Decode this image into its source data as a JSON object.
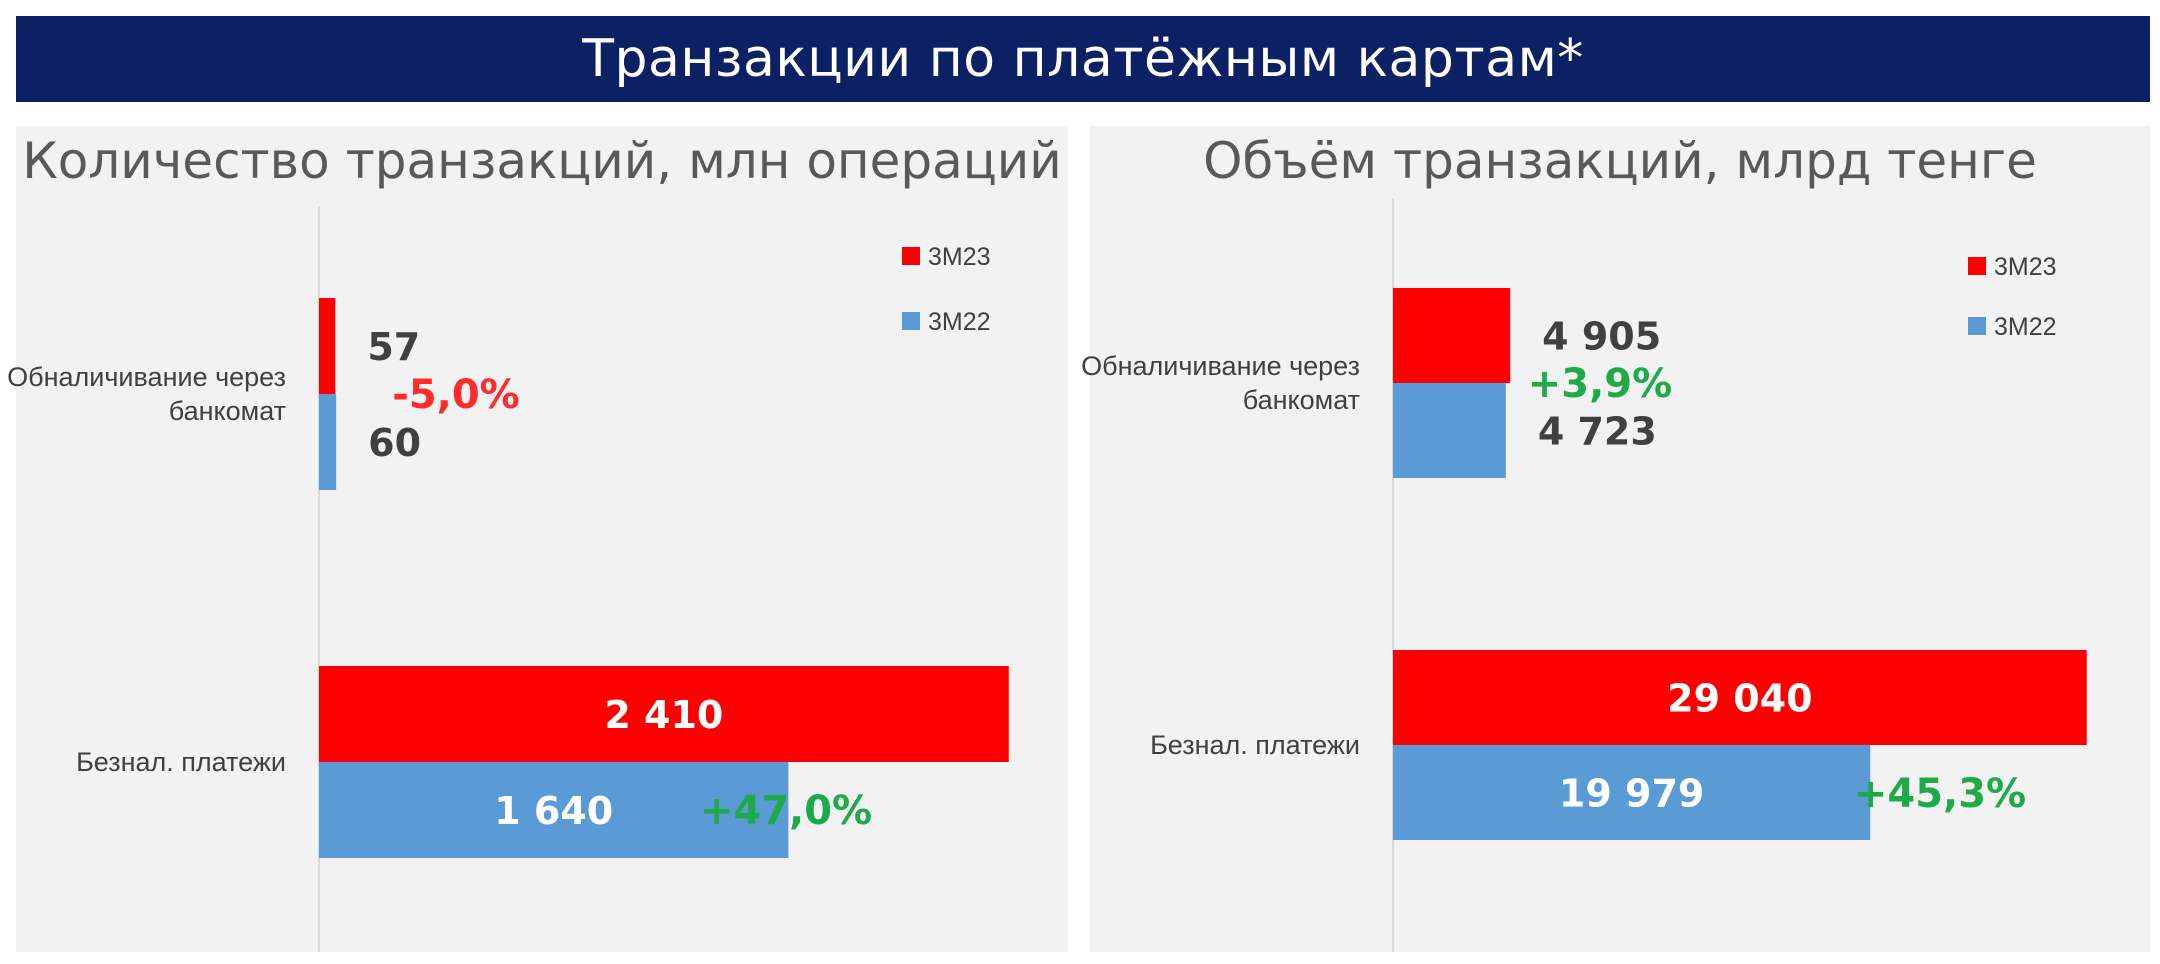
{
  "page": {
    "title": "Транзакции по платёжным картам*"
  },
  "colors": {
    "banner": "#0b2164",
    "series_3m23": "#ff0000",
    "series_3m22": "#5b9bd5",
    "negative": "#ff2a2a",
    "positive": "#1faa4a"
  },
  "chart_data": [
    {
      "type": "bar",
      "orientation": "horizontal",
      "title": "Количество транзакций, млн операций",
      "categories": [
        "Обналичивание через банкомат",
        "Безнал. платежи"
      ],
      "series": [
        {
          "name": "3М23",
          "values": [
            57,
            2410
          ],
          "labels": [
            "57",
            "2 410"
          ]
        },
        {
          "name": "3М22",
          "values": [
            60,
            1640
          ],
          "labels": [
            "60",
            "1 640"
          ]
        }
      ],
      "changes": [
        "-5,0%",
        "+47,0%"
      ],
      "xlim": [
        0,
        2900
      ],
      "legend": "top-right",
      "grid": false
    },
    {
      "type": "bar",
      "orientation": "horizontal",
      "title": "Объём транзакций, млрд тенге",
      "categories": [
        "Обналичивание через банкомат",
        "Безнал. платежи"
      ],
      "series": [
        {
          "name": "3М23",
          "values": [
            4905,
            29040
          ],
          "labels": [
            "4 905",
            "29 040"
          ]
        },
        {
          "name": "3М22",
          "values": [
            4723,
            19979
          ],
          "labels": [
            "4 723",
            "19 979"
          ]
        }
      ],
      "changes": [
        "+3,9%",
        "+45,3%"
      ],
      "xlim": [
        0,
        36000
      ],
      "legend": "top-right",
      "grid": false
    }
  ]
}
